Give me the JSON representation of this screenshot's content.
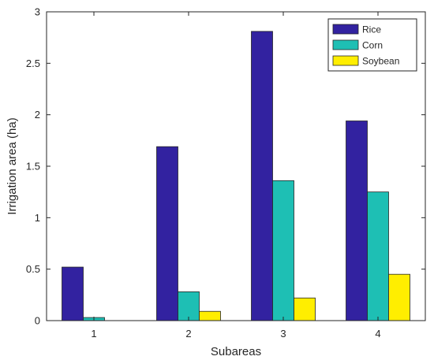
{
  "chart_data": {
    "type": "bar",
    "categories": [
      "1",
      "2",
      "3",
      "4"
    ],
    "series": [
      {
        "name": "Rice",
        "values": [
          0.52,
          1.69,
          2.81,
          1.94
        ],
        "color": "#3222a0"
      },
      {
        "name": "Corn",
        "values": [
          0.03,
          0.28,
          1.36,
          1.25
        ],
        "color": "#1ebfb4"
      },
      {
        "name": "Soybean",
        "values": [
          0.0,
          0.09,
          0.22,
          0.45
        ],
        "color": "#ffee00"
      }
    ],
    "xlabel": "Subareas",
    "ylabel": "Irrigation area (ha)",
    "ylim": [
      0,
      3
    ],
    "yticks": [
      0,
      0.5,
      1,
      1.5,
      2,
      2.5,
      3
    ],
    "ytick_labels": [
      "0",
      "0.5",
      "1",
      "1.5",
      "2",
      "2.5",
      "3"
    ],
    "grid": false,
    "legend_position": "top-right"
  }
}
